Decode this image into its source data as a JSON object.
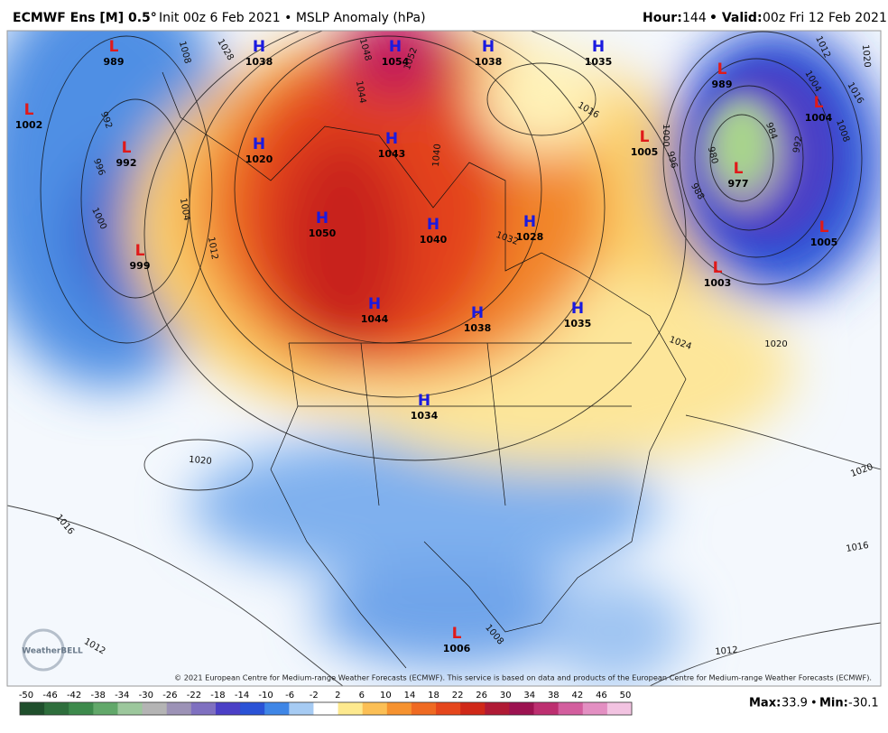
{
  "header": {
    "title_bold": "ECMWF Ens [M] 0.5°",
    "title_rest": "Init 00z 6 Feb 2021 • MSLP Anomaly (hPa)",
    "hour_label": "Hour:",
    "hour": 144,
    "valid_label": "• Valid:",
    "valid": "00z Fri 12 Feb 2021"
  },
  "pressure_centers": [
    {
      "kind": "L",
      "value": 989
    },
    {
      "kind": "H",
      "value": 1038
    },
    {
      "kind": "H",
      "value": 1054
    },
    {
      "kind": "H",
      "value": 1038
    },
    {
      "kind": "H",
      "value": 1035
    },
    {
      "kind": "L",
      "value": 989
    },
    {
      "kind": "L",
      "value": 1002
    },
    {
      "kind": "L",
      "value": 992
    },
    {
      "kind": "H",
      "value": 1020
    },
    {
      "kind": "H",
      "value": 1043
    },
    {
      "kind": "L",
      "value": 1005
    },
    {
      "kind": "L",
      "value": 1004
    },
    {
      "kind": "L",
      "value": 977
    },
    {
      "kind": "H",
      "value": 1050
    },
    {
      "kind": "H",
      "value": 1040
    },
    {
      "kind": "H",
      "value": 1028
    },
    {
      "kind": "L",
      "value": 999
    },
    {
      "kind": "L",
      "value": 1005
    },
    {
      "kind": "L",
      "value": 1003
    },
    {
      "kind": "H",
      "value": 1044
    },
    {
      "kind": "H",
      "value": 1038
    },
    {
      "kind": "H",
      "value": 1035
    },
    {
      "kind": "H",
      "value": 1034
    },
    {
      "kind": "L",
      "value": 1006
    }
  ],
  "isobar_labels": [
    1008,
    1028,
    1048,
    1052,
    1044,
    992,
    996,
    1000,
    1004,
    1012,
    1040,
    1032,
    1016,
    1000,
    996,
    988,
    980,
    984,
    992,
    1004,
    1008,
    1012,
    1016,
    1020,
    1024,
    1020,
    1020,
    1016,
    1012,
    1008,
    1012,
    1016,
    1020
  ],
  "copyright": "© 2021 European Centre for Medium-range Weather Forecasts (ECMWF). This service is based on data and products of the European Centre for Medium-range Weather Forecasts (ECMWF).",
  "logo": "WeatherBELL",
  "colorbar": {
    "ticks": [
      -50,
      -46,
      -42,
      -38,
      -34,
      -30,
      -26,
      -22,
      -18,
      -14,
      -10,
      -6,
      -2,
      2,
      6,
      10,
      14,
      18,
      22,
      26,
      30,
      34,
      38,
      42,
      46,
      50
    ],
    "colors": [
      "#1f4f2c",
      "#2e6e3c",
      "#3d8a4c",
      "#62a86a",
      "#9cc79c",
      "#b4b4b4",
      "#9c92b6",
      "#7f70c0",
      "#4b3fc6",
      "#2a52d6",
      "#3f86e6",
      "#a6cbf3",
      "#ffffff",
      "#fde98e",
      "#fbbf55",
      "#f6922f",
      "#ef6a22",
      "#e5461c",
      "#d02818",
      "#b01a35",
      "#9c1250",
      "#bd2f70",
      "#d35e9e",
      "#e38fc2",
      "#f2c3e1"
    ]
  },
  "stats": {
    "max_label": "Max:",
    "max": 33.9,
    "separator": "•",
    "min_label": "Min:",
    "min": -30.1
  }
}
